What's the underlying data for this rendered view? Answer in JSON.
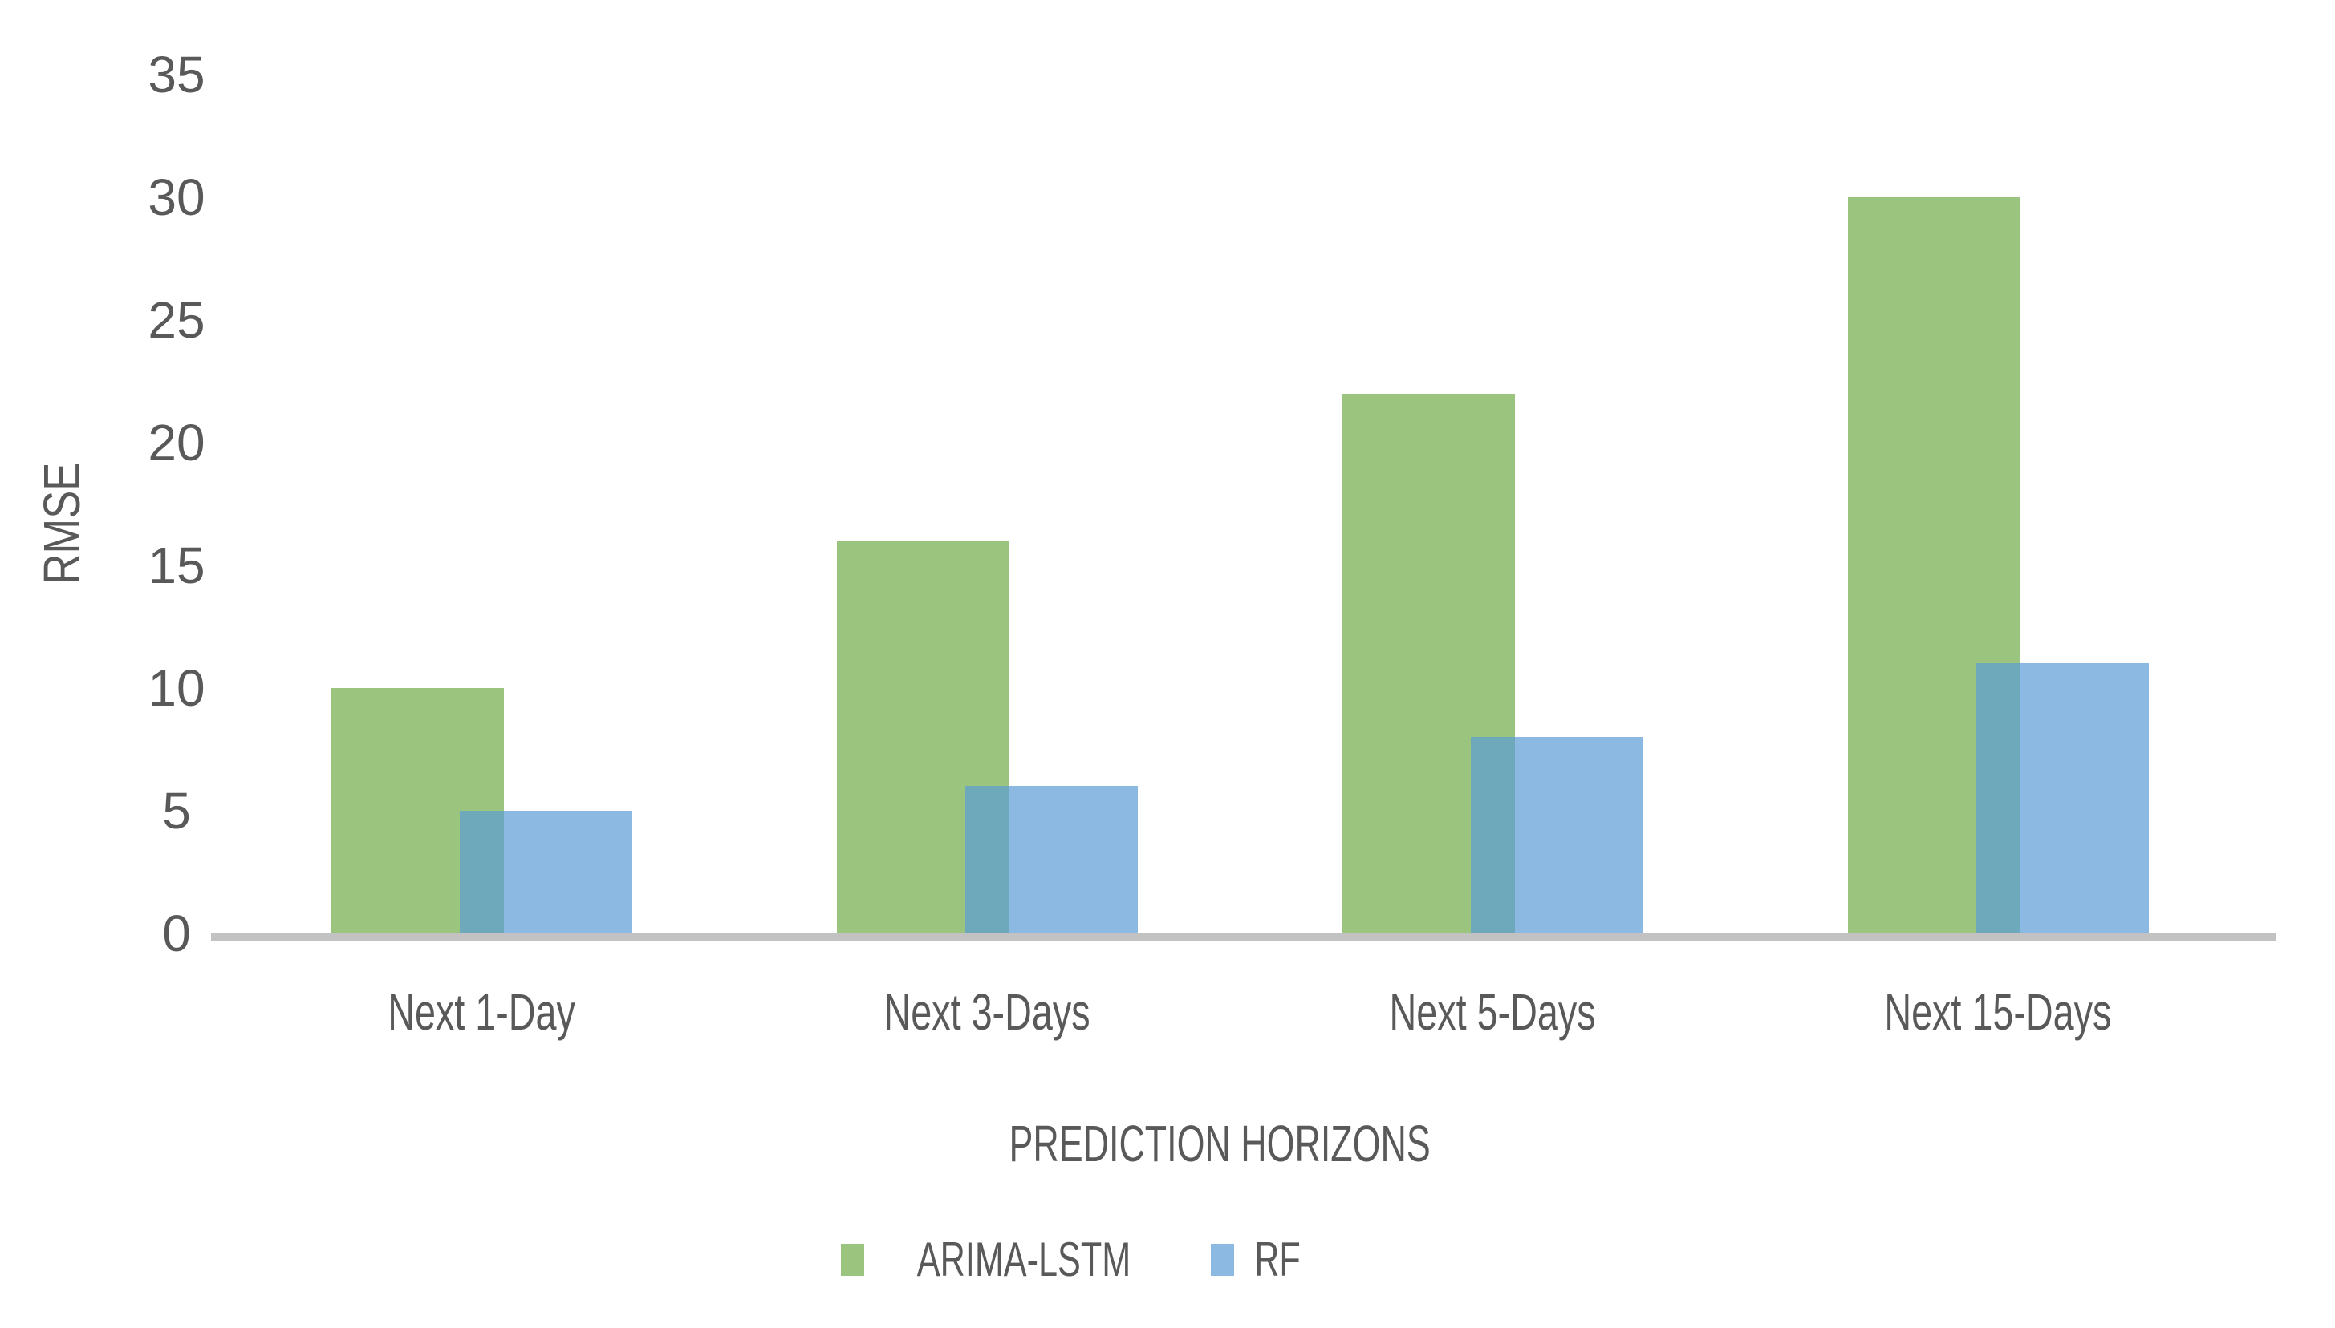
{
  "chart_data": {
    "type": "bar",
    "title": "",
    "categories": [
      "Next 1-Day",
      "Next 3-Days",
      "Next 5-Days",
      "Next 15-Days"
    ],
    "series": [
      {
        "name": "ARIMA-LSTM",
        "values": [
          10,
          16,
          22,
          30
        ],
        "fill": "rgba(112, 173, 71, 0.70)",
        "solid_color": "#9bc67e"
      },
      {
        "name": "RF",
        "values": [
          5,
          6,
          8,
          11
        ],
        "fill": "rgba(91, 155, 213, 0.70)",
        "solid_color": "#8db9e2"
      }
    ],
    "overlap_blend_color": "#6fa9b2",
    "xlabel": "PREDICTION HORIZONS",
    "ylabel": "RMSE",
    "ylim": [
      0,
      35
    ],
    "yticks": [
      0,
      5,
      10,
      15,
      20,
      25,
      30,
      35
    ],
    "grid": false,
    "legend_position": "bottom",
    "bar_overlap_percent": 26,
    "text_color": "#595959",
    "axis_line_color": "#c2c2c2",
    "background": "#ffffff"
  }
}
